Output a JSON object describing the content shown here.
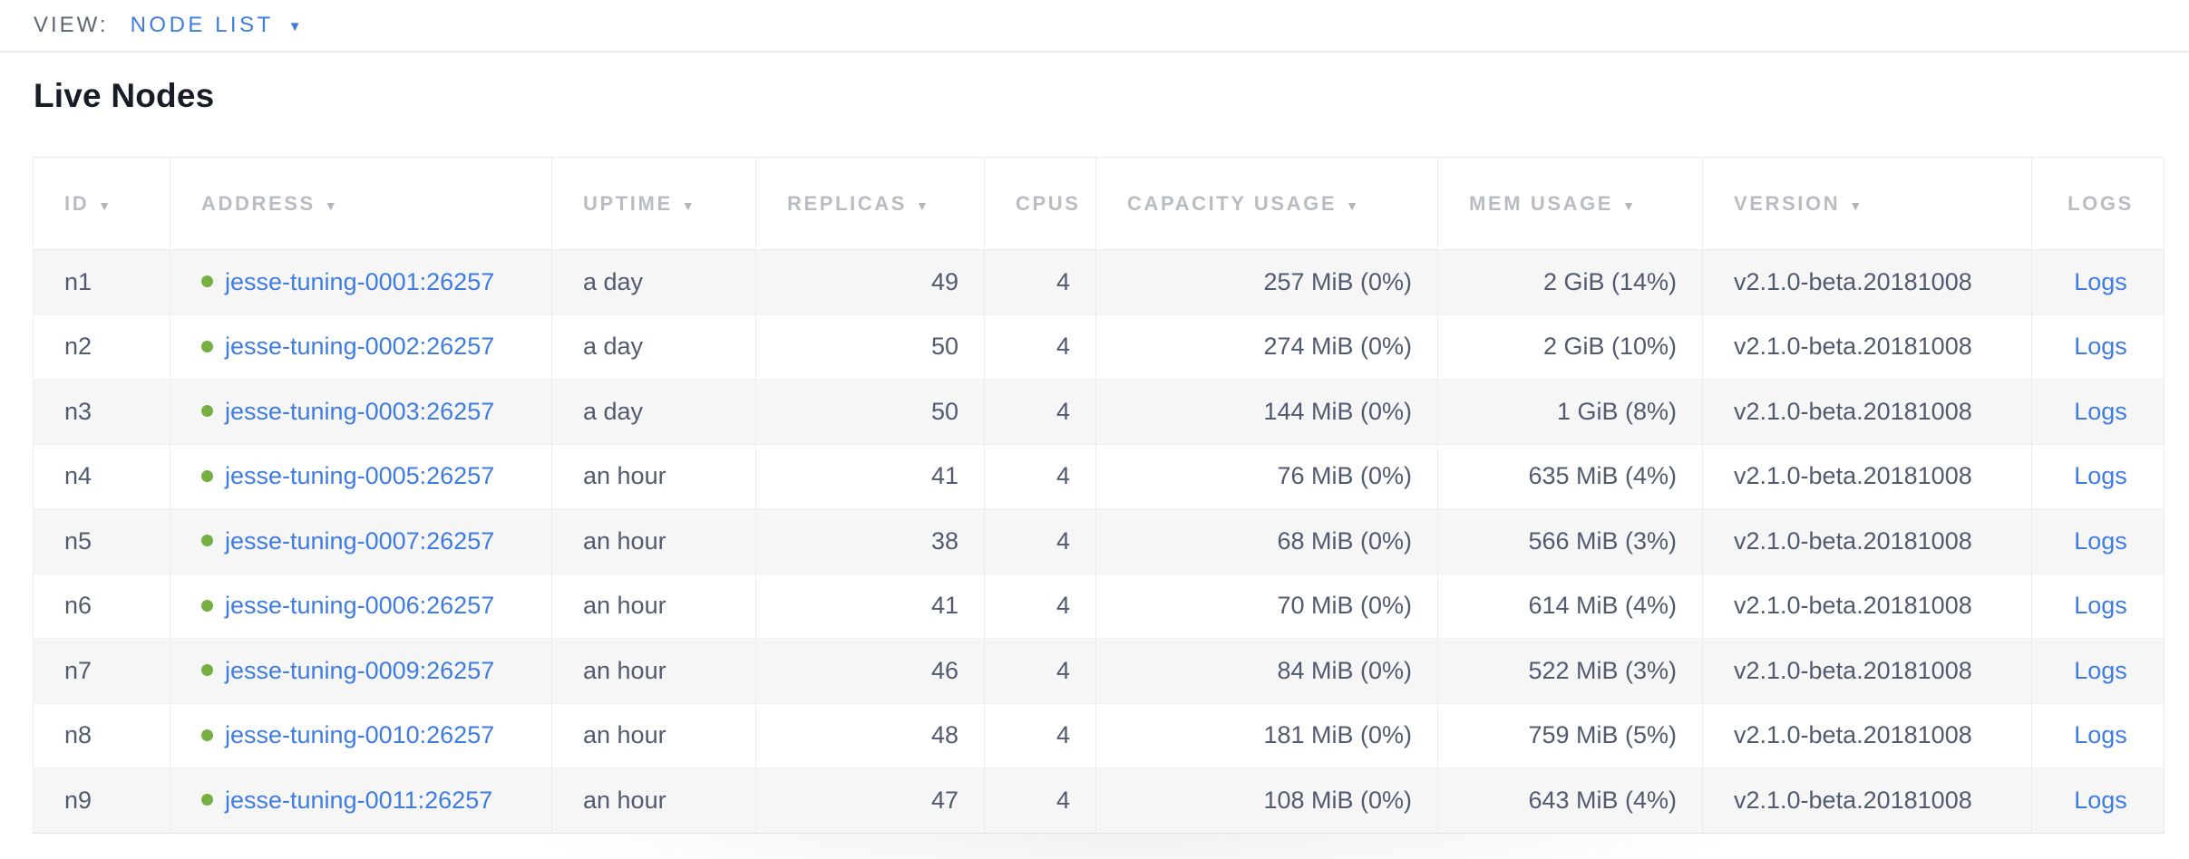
{
  "view_bar": {
    "label": "VIEW:",
    "selected_view": "NODE LIST"
  },
  "page": {
    "title": "Live Nodes"
  },
  "icons": {
    "sort_arrow": "▼",
    "dropdown_caret": "▼",
    "live_status_dot": "circle"
  },
  "colors": {
    "link_blue": "#3e7ce1",
    "live_dot_green": "#76b042",
    "header_text_gray": "#b9bcc0",
    "cell_text_slate": "#525a70",
    "row_stripe_gray": "#f6f6f7"
  },
  "table": {
    "columns": [
      {
        "key": "id",
        "label": "ID",
        "sortable": true,
        "align": "left"
      },
      {
        "key": "address",
        "label": "ADDRESS",
        "sortable": true,
        "align": "left"
      },
      {
        "key": "uptime",
        "label": "UPTIME",
        "sortable": true,
        "align": "left"
      },
      {
        "key": "replicas",
        "label": "REPLICAS",
        "sortable": true,
        "align": "right"
      },
      {
        "key": "cpus",
        "label": "CPUS",
        "sortable": false,
        "align": "right"
      },
      {
        "key": "capacity_usage",
        "label": "CAPACITY USAGE",
        "sortable": true,
        "align": "right"
      },
      {
        "key": "mem_usage",
        "label": "MEM USAGE",
        "sortable": true,
        "align": "right"
      },
      {
        "key": "version",
        "label": "VERSION",
        "sortable": true,
        "align": "left"
      },
      {
        "key": "logs",
        "label": "LOGS",
        "sortable": false,
        "align": "center"
      }
    ],
    "rows": [
      {
        "id": "n1",
        "status": "live",
        "address": "jesse-tuning-0001:26257",
        "uptime": "a day",
        "replicas": "49",
        "cpus": "4",
        "capacity_usage": "257 MiB (0%)",
        "mem_usage": "2 GiB (14%)",
        "version": "v2.1.0-beta.20181008",
        "logs": "Logs"
      },
      {
        "id": "n2",
        "status": "live",
        "address": "jesse-tuning-0002:26257",
        "uptime": "a day",
        "replicas": "50",
        "cpus": "4",
        "capacity_usage": "274 MiB (0%)",
        "mem_usage": "2 GiB (10%)",
        "version": "v2.1.0-beta.20181008",
        "logs": "Logs"
      },
      {
        "id": "n3",
        "status": "live",
        "address": "jesse-tuning-0003:26257",
        "uptime": "a day",
        "replicas": "50",
        "cpus": "4",
        "capacity_usage": "144 MiB (0%)",
        "mem_usage": "1 GiB (8%)",
        "version": "v2.1.0-beta.20181008",
        "logs": "Logs"
      },
      {
        "id": "n4",
        "status": "live",
        "address": "jesse-tuning-0005:26257",
        "uptime": "an hour",
        "replicas": "41",
        "cpus": "4",
        "capacity_usage": "76 MiB (0%)",
        "mem_usage": "635 MiB (4%)",
        "version": "v2.1.0-beta.20181008",
        "logs": "Logs"
      },
      {
        "id": "n5",
        "status": "live",
        "address": "jesse-tuning-0007:26257",
        "uptime": "an hour",
        "replicas": "38",
        "cpus": "4",
        "capacity_usage": "68 MiB (0%)",
        "mem_usage": "566 MiB (3%)",
        "version": "v2.1.0-beta.20181008",
        "logs": "Logs"
      },
      {
        "id": "n6",
        "status": "live",
        "address": "jesse-tuning-0006:26257",
        "uptime": "an hour",
        "replicas": "41",
        "cpus": "4",
        "capacity_usage": "70 MiB (0%)",
        "mem_usage": "614 MiB (4%)",
        "version": "v2.1.0-beta.20181008",
        "logs": "Logs"
      },
      {
        "id": "n7",
        "status": "live",
        "address": "jesse-tuning-0009:26257",
        "uptime": "an hour",
        "replicas": "46",
        "cpus": "4",
        "capacity_usage": "84 MiB (0%)",
        "mem_usage": "522 MiB (3%)",
        "version": "v2.1.0-beta.20181008",
        "logs": "Logs"
      },
      {
        "id": "n8",
        "status": "live",
        "address": "jesse-tuning-0010:26257",
        "uptime": "an hour",
        "replicas": "48",
        "cpus": "4",
        "capacity_usage": "181 MiB (0%)",
        "mem_usage": "759 MiB (5%)",
        "version": "v2.1.0-beta.20181008",
        "logs": "Logs"
      },
      {
        "id": "n9",
        "status": "live",
        "address": "jesse-tuning-0011:26257",
        "uptime": "an hour",
        "replicas": "47",
        "cpus": "4",
        "capacity_usage": "108 MiB (0%)",
        "mem_usage": "643 MiB (4%)",
        "version": "v2.1.0-beta.20181008",
        "logs": "Logs"
      }
    ]
  }
}
